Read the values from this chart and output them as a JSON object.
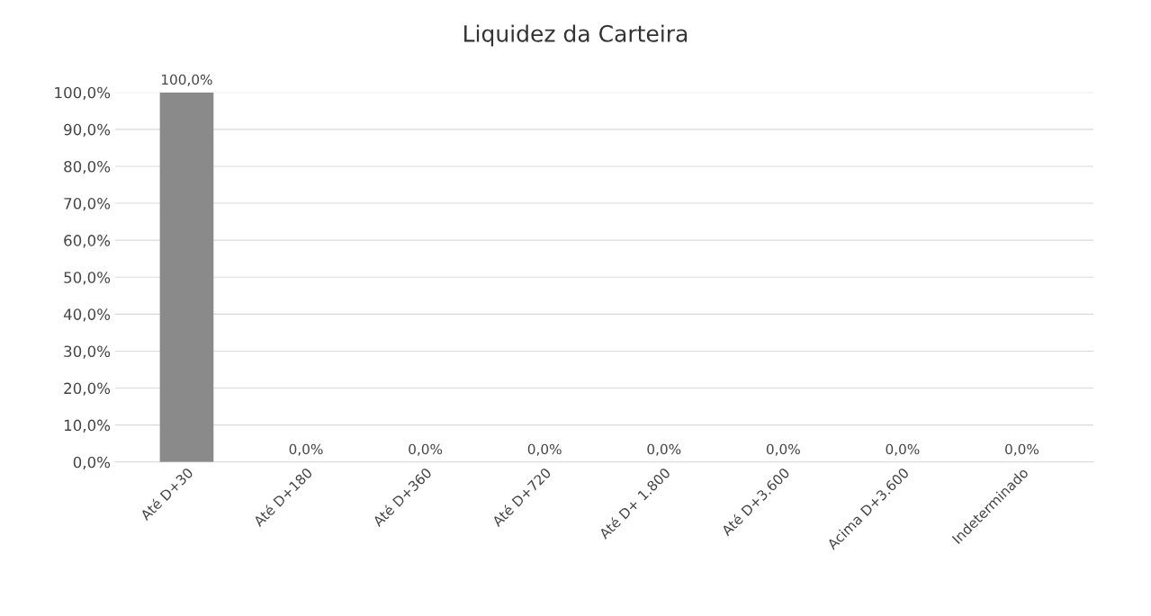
{
  "chart_data": {
    "type": "bar",
    "title": "Liquidez da Carteira",
    "categories": [
      "Até D+30",
      "Até D+180",
      "Até D+360",
      "Até D+720",
      "Até D+ 1.800",
      "Até D+3.600",
      "Acima D+3.600",
      "Indeterminado"
    ],
    "values": [
      100,
      0,
      0,
      0,
      0,
      0,
      0,
      0
    ],
    "value_labels": [
      "100,0%",
      "0,0%",
      "0,0%",
      "0,0%",
      "0,0%",
      "0,0%",
      "0,0%",
      "0,0%"
    ],
    "color": "#8a8a8a",
    "ylim": [
      0,
      100
    ],
    "yticks": [
      {
        "value": 0,
        "label": "0,0%"
      },
      {
        "value": 10,
        "label": "10,0%"
      },
      {
        "value": 20,
        "label": "20,0%"
      },
      {
        "value": 30,
        "label": "30,0%"
      },
      {
        "value": 40,
        "label": "40,0%"
      },
      {
        "value": 50,
        "label": "50,0%"
      },
      {
        "value": 60,
        "label": "60,0%"
      },
      {
        "value": 70,
        "label": "70,0%"
      },
      {
        "value": 80,
        "label": "80,0%"
      },
      {
        "value": 90,
        "label": "90,0%"
      },
      {
        "value": 100,
        "label": "100,0%"
      }
    ],
    "grid": "y",
    "legend": false
  }
}
